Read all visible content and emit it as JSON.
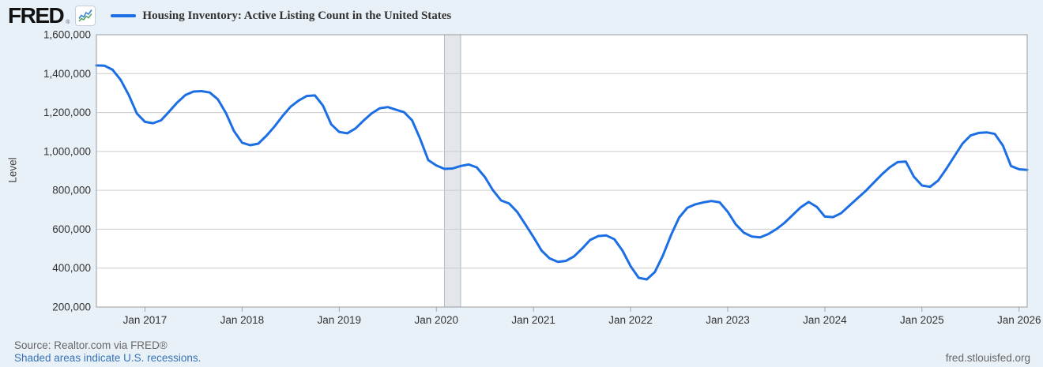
{
  "header": {
    "logo_text": "FRED",
    "logo_registered": "®",
    "legend": {
      "series_label": "Housing Inventory: Active Listing Count in the United States"
    }
  },
  "footer": {
    "source_text": "Source: Realtor.com via FRED®",
    "recession_note": "Shaded areas indicate U.S. recessions.",
    "site_link": "fred.stlouisfed.org"
  },
  "colors": {
    "series": "#1b6ee3",
    "background": "#e9f1f8",
    "plot_background": "#ffffff",
    "gridline": "#cccccc",
    "plot_border": "#9b9b9b",
    "recession_band": "#e3e7eb",
    "recession_band_border": "#b4bac1",
    "axis_text": "#333333",
    "tick_mark": "#98a6b3",
    "link": "#3672b5",
    "muted_text": "#666666",
    "icon_blue": "#3b82d9",
    "icon_green": "#5aa868"
  },
  "chart_data": {
    "type": "line",
    "title": "Housing Inventory: Active Listing Count in the United States",
    "ylabel": "Level",
    "xlabel": "",
    "grid": true,
    "legend_position": "top-left",
    "ylim": [
      200000,
      1600000
    ],
    "xlim_decimal_years": [
      2016.5,
      2026.0833
    ],
    "yticks": [
      {
        "value": 200000,
        "label": "200,000"
      },
      {
        "value": 400000,
        "label": "400,000"
      },
      {
        "value": 600000,
        "label": "600,000"
      },
      {
        "value": 800000,
        "label": "800,000"
      },
      {
        "value": 1000000,
        "label": "1,000,000"
      },
      {
        "value": 1200000,
        "label": "1,200,000"
      },
      {
        "value": 1400000,
        "label": "1,400,000"
      },
      {
        "value": 1600000,
        "label": "1,600,000"
      }
    ],
    "xticks": [
      {
        "t": 2017,
        "label": "Jan 2017"
      },
      {
        "t": 2018,
        "label": "Jan 2018"
      },
      {
        "t": 2019,
        "label": "Jan 2019"
      },
      {
        "t": 2020,
        "label": "Jan 2020"
      },
      {
        "t": 2021,
        "label": "Jan 2021"
      },
      {
        "t": 2022,
        "label": "Jan 2022"
      },
      {
        "t": 2023,
        "label": "Jan 2023"
      },
      {
        "t": 2024,
        "label": "Jan 2024"
      },
      {
        "t": 2025,
        "label": "Jan 2025"
      },
      {
        "t": 2026,
        "label": "Jan 2026"
      }
    ],
    "recession_bands": [
      {
        "start": "2020-02",
        "end": "2020-04",
        "start_decimal_year": 2020.0833,
        "end_decimal_year": 2020.25
      }
    ],
    "series": [
      {
        "name": "Housing Inventory: Active Listing Count in the United States",
        "frequency": "monthly",
        "start_month": "2016-07",
        "end_month": "2026-02",
        "start_decimal_year": 2016.5,
        "values_are_approximate_chart_readings": true,
        "values": [
          1442000,
          1441000,
          1420000,
          1368000,
          1290000,
          1195000,
          1152000,
          1145000,
          1160000,
          1205000,
          1252000,
          1290000,
          1308000,
          1310000,
          1303000,
          1268000,
          1198000,
          1105000,
          1045000,
          1032000,
          1040000,
          1080000,
          1128000,
          1182000,
          1230000,
          1262000,
          1285000,
          1288000,
          1235000,
          1140000,
          1100000,
          1093000,
          1118000,
          1158000,
          1195000,
          1222000,
          1228000,
          1215000,
          1202000,
          1160000,
          1065000,
          955000,
          928000,
          910000,
          912000,
          925000,
          933000,
          918000,
          868000,
          800000,
          748000,
          732000,
          688000,
          625000,
          560000,
          490000,
          450000,
          432000,
          437000,
          460000,
          500000,
          545000,
          565000,
          568000,
          548000,
          490000,
          410000,
          350000,
          342000,
          380000,
          465000,
          570000,
          660000,
          710000,
          728000,
          738000,
          745000,
          738000,
          690000,
          625000,
          582000,
          562000,
          558000,
          575000,
          600000,
          632000,
          672000,
          712000,
          740000,
          715000,
          665000,
          662000,
          682000,
          720000,
          758000,
          795000,
          838000,
          880000,
          918000,
          945000,
          948000,
          870000,
          825000,
          818000,
          850000,
          910000,
          975000,
          1040000,
          1082000,
          1095000,
          1098000,
          1090000,
          1030000,
          925000,
          908000,
          905000
        ]
      }
    ]
  }
}
